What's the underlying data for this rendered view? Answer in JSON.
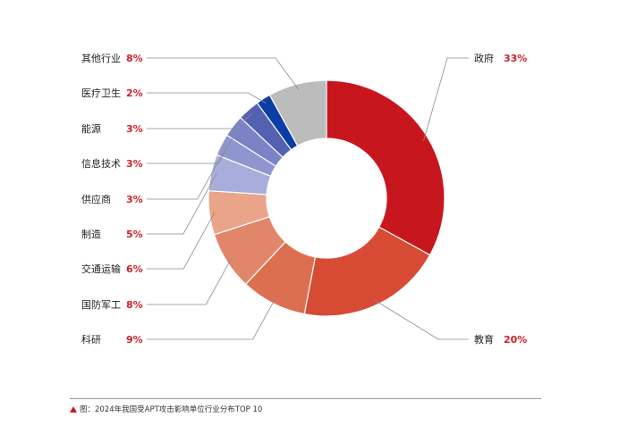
{
  "chart_data": {
    "type": "pie",
    "donut": true,
    "title": "",
    "categories": [
      "政府",
      "教育",
      "科研",
      "国防军工",
      "交通运输",
      "制造",
      "供应商",
      "信息技术",
      "能源",
      "医疗卫生",
      "其他行业"
    ],
    "values": [
      33,
      20,
      9,
      8,
      6,
      5,
      3,
      3,
      3,
      2,
      8
    ],
    "value_labels": [
      "33%",
      "20%",
      "9%",
      "8%",
      "6%",
      "5%",
      "3%",
      "3%",
      "3%",
      "2%",
      "8%"
    ],
    "colors": [
      "#c8161e",
      "#d74a34",
      "#dc6f50",
      "#e2866a",
      "#e9a48a",
      "#a7aedc",
      "#8f96cf",
      "#7b82c5",
      "#5461b2",
      "#0a3ea5",
      "#bcbcbc"
    ],
    "legend": "none",
    "label_color": "#d0202b"
  },
  "caption": {
    "marker_color": "#c8161e",
    "text": "图：2024年我国受APT攻击影响单位行业分布TOP 10"
  }
}
